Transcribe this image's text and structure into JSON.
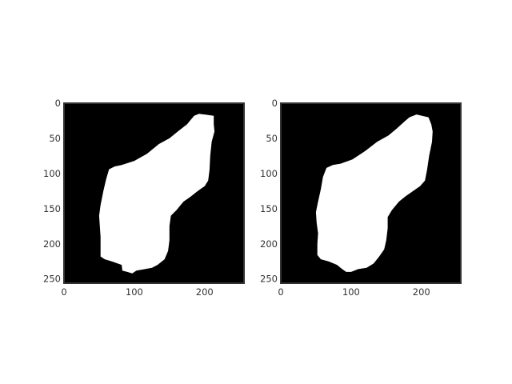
{
  "figure": {
    "background": "#ffffff",
    "panels": [
      {
        "id": "left",
        "image_width": 256,
        "image_height": 256,
        "xticks": [
          0,
          100,
          200
        ],
        "yticks": [
          0,
          50,
          100,
          150,
          200,
          250
        ],
        "mask": [
          [
            185,
            18
          ],
          [
            192,
            15
          ],
          [
            213,
            18
          ],
          [
            213,
            30
          ],
          [
            214,
            40
          ],
          [
            210,
            55
          ],
          [
            208,
            75
          ],
          [
            207,
            95
          ],
          [
            205,
            110
          ],
          [
            200,
            118
          ],
          [
            190,
            125
          ],
          [
            180,
            133
          ],
          [
            170,
            140
          ],
          [
            160,
            152
          ],
          [
            152,
            160
          ],
          [
            150,
            175
          ],
          [
            150,
            195
          ],
          [
            148,
            210
          ],
          [
            143,
            222
          ],
          [
            133,
            230
          ],
          [
            125,
            234
          ],
          [
            115,
            236
          ],
          [
            103,
            238
          ],
          [
            97,
            242
          ],
          [
            90,
            240
          ],
          [
            83,
            238
          ],
          [
            82,
            230
          ],
          [
            68,
            225
          ],
          [
            58,
            222
          ],
          [
            52,
            218
          ],
          [
            52,
            205
          ],
          [
            52,
            190
          ],
          [
            51,
            175
          ],
          [
            50,
            160
          ],
          [
            52,
            145
          ],
          [
            56,
            125
          ],
          [
            60,
            108
          ],
          [
            64,
            94
          ],
          [
            72,
            90
          ],
          [
            82,
            88
          ],
          [
            100,
            82
          ],
          [
            118,
            72
          ],
          [
            135,
            58
          ],
          [
            150,
            50
          ],
          [
            162,
            40
          ],
          [
            175,
            30
          ]
        ],
        "color_bg": "#000000",
        "color_fg": "#ffffff"
      },
      {
        "id": "right",
        "image_width": 256,
        "image_height": 256,
        "xticks": [
          0,
          100,
          200
        ],
        "yticks": [
          0,
          50,
          100,
          150,
          200,
          250
        ],
        "mask": [
          [
            183,
            20
          ],
          [
            193,
            16
          ],
          [
            210,
            20
          ],
          [
            214,
            30
          ],
          [
            216,
            40
          ],
          [
            215,
            55
          ],
          [
            211,
            75
          ],
          [
            208,
            95
          ],
          [
            205,
            110
          ],
          [
            198,
            118
          ],
          [
            188,
            125
          ],
          [
            178,
            132
          ],
          [
            168,
            140
          ],
          [
            158,
            152
          ],
          [
            152,
            162
          ],
          [
            152,
            178
          ],
          [
            150,
            195
          ],
          [
            147,
            208
          ],
          [
            140,
            218
          ],
          [
            132,
            228
          ],
          [
            122,
            234
          ],
          [
            110,
            236
          ],
          [
            100,
            240
          ],
          [
            93,
            240
          ],
          [
            86,
            235
          ],
          [
            80,
            230
          ],
          [
            68,
            225
          ],
          [
            57,
            222
          ],
          [
            52,
            216
          ],
          [
            52,
            200
          ],
          [
            53,
            185
          ],
          [
            51,
            170
          ],
          [
            50,
            155
          ],
          [
            53,
            140
          ],
          [
            57,
            122
          ],
          [
            60,
            105
          ],
          [
            65,
            92
          ],
          [
            74,
            88
          ],
          [
            85,
            86
          ],
          [
            102,
            80
          ],
          [
            120,
            68
          ],
          [
            137,
            55
          ],
          [
            153,
            46
          ],
          [
            165,
            36
          ],
          [
            177,
            25
          ]
        ],
        "color_bg": "#000000",
        "color_fg": "#ffffff"
      }
    ]
  }
}
